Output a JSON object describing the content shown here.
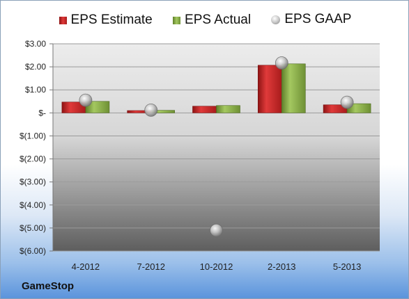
{
  "chart_data": {
    "type": "bar",
    "categories": [
      "4-2012",
      "7-2012",
      "10-2012",
      "2-2013",
      "5-2013"
    ],
    "series": [
      {
        "name": "EPS Estimate",
        "kind": "bar",
        "color": "#cc2a2a",
        "values": [
          0.47,
          0.1,
          0.29,
          2.07,
          0.35
        ]
      },
      {
        "name": "EPS Actual",
        "kind": "bar",
        "color": "#8aae48",
        "values": [
          0.5,
          0.11,
          0.32,
          2.13,
          0.4
        ]
      },
      {
        "name": "EPS GAAP",
        "kind": "marker",
        "color": "#bfbfbf",
        "values": [
          0.55,
          0.12,
          -5.1,
          2.17,
          0.46
        ]
      }
    ],
    "ylim": [
      -6,
      3
    ],
    "yticks": [
      {
        "value": 3,
        "label": "$3.00"
      },
      {
        "value": 2,
        "label": "$2.00"
      },
      {
        "value": 1,
        "label": "$1.00"
      },
      {
        "value": 0,
        "label": "$-"
      },
      {
        "value": -1,
        "label": "$(1.00)"
      },
      {
        "value": -2,
        "label": "$(2.00)"
      },
      {
        "value": -3,
        "label": "$(3.00)"
      },
      {
        "value": -4,
        "label": "$(4.00)"
      },
      {
        "value": -5,
        "label": "$(5.00)"
      },
      {
        "value": -6,
        "label": "$(6.00)"
      }
    ],
    "grid": true,
    "legend_position": "top"
  },
  "company_name": "GameStop"
}
